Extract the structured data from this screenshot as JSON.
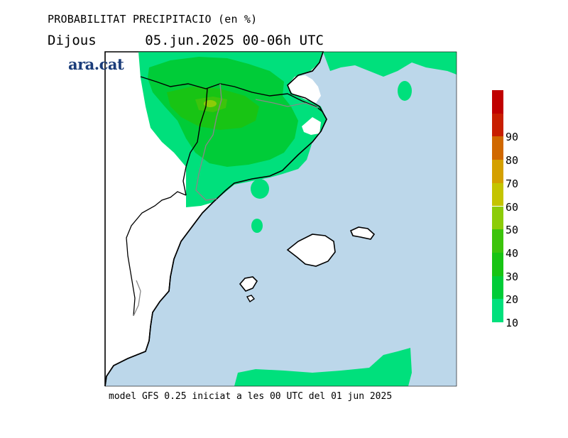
{
  "header": {
    "title": "PROBABILITAT PRECIPITACIO (en %)",
    "subtitle": "Dijous      05.jun.2025 00-06h UTC"
  },
  "logo": {
    "text": "ara.cat",
    "color": "#1b3d7a"
  },
  "footer": {
    "text": "model GFS 0.25 iniciat a les 00 UTC del 01 jun 2025"
  },
  "legend": {
    "levels": [
      {
        "value": "10",
        "color": "#00e07c"
      },
      {
        "value": "20",
        "color": "#00cc38"
      },
      {
        "value": "30",
        "color": "#18c414"
      },
      {
        "value": "40",
        "color": "#3cc40c"
      },
      {
        "value": "50",
        "color": "#8ccc08"
      },
      {
        "value": "60",
        "color": "#c4c400"
      },
      {
        "value": "70",
        "color": "#d4a000"
      },
      {
        "value": "80",
        "color": "#d06800"
      },
      {
        "value": "90",
        "color": "#c81e00"
      }
    ],
    "top_color": "#c00000"
  },
  "map_colors": {
    "sea": "#bcd7ea",
    "land": "#ffffff",
    "coast": "#000000",
    "border": "#888888"
  }
}
